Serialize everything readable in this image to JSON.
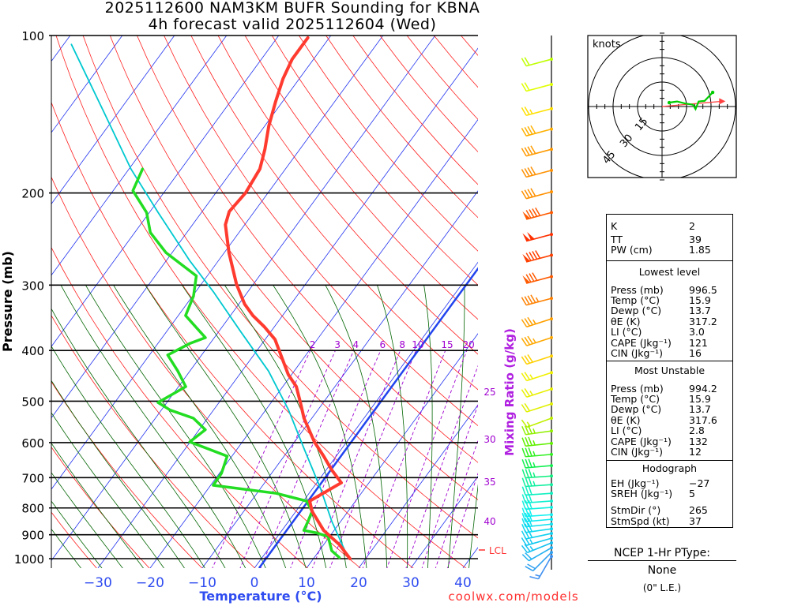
{
  "title": {
    "line1": "2025112600 NAM3KM BUFR Sounding for KBNA",
    "line2": "4h forecast valid 2025112604 (Wed)"
  },
  "credit": "coolwx.com/models",
  "lcl_label": "LCL",
  "colors": {
    "temperature": "#ff3b30",
    "dewpoint": "#22dd22",
    "parcel": "#00c8d0",
    "freezing_isotherm": "#2244ee",
    "isotherms": "#2233ee",
    "dry_adiabats": "#ff2020",
    "moist_adiabats": "#006400",
    "mixing_ratio": "#a000d0",
    "storm_motion": "#ff4040"
  },
  "chart_data": {
    "type": "skew-t",
    "title": "2025112600 NAM3KM BUFR Sounding for KBNA / 4h forecast valid 2025112604 (Wed)",
    "xlabel": "Temperature (°C)",
    "ylabel": "Pressure (mb)",
    "y2label": "Mixing Ratio (g/kg)",
    "xlim": [
      -40,
      43
    ],
    "ylim": [
      1050,
      100
    ],
    "pressure_ticks": [
      "100",
      "200",
      "300",
      "400",
      "500",
      "600",
      "700",
      "800",
      "900",
      "1000"
    ],
    "temperature_ticks": [
      "−30",
      "−20",
      "−10",
      "0",
      "10",
      "20",
      "30",
      "40"
    ],
    "temperature_tick_values": [
      -30,
      -20,
      -10,
      0,
      10,
      20,
      30,
      40
    ],
    "mixing_ratio_labels": [
      "2",
      "3",
      "4",
      "6",
      "8",
      "10",
      "15",
      "20",
      "25",
      "30",
      "35",
      "40"
    ],
    "mixing_ratio_values": [
      2,
      3,
      4,
      6,
      8,
      10,
      15,
      20,
      25,
      30,
      35,
      40
    ],
    "lcl_pressure": 965,
    "temperature": [
      [
        1000,
        17.0
      ],
      [
        940,
        13.0
      ],
      [
        883,
        8.0
      ],
      [
        812,
        3.1
      ],
      [
        776,
        1.2
      ],
      [
        716,
        4.7
      ],
      [
        676,
        1.0
      ],
      [
        637,
        -2.4
      ],
      [
        598,
        -6.2
      ],
      [
        539,
        -11.5
      ],
      [
        503,
        -14.4
      ],
      [
        469,
        -17.4
      ],
      [
        445,
        -20.6
      ],
      [
        408,
        -24.8
      ],
      [
        381,
        -28.1
      ],
      [
        361,
        -31.8
      ],
      [
        343,
        -35.7
      ],
      [
        326,
        -38.9
      ],
      [
        299,
        -43.2
      ],
      [
        260,
        -49.1
      ],
      [
        230,
        -53.7
      ],
      [
        217,
        -54.8
      ],
      [
        200,
        -54.3
      ],
      [
        180,
        -54.9
      ],
      [
        165,
        -56.7
      ],
      [
        149,
        -59.2
      ],
      [
        134,
        -61.3
      ],
      [
        121,
        -63.1
      ],
      [
        111,
        -64.1
      ],
      [
        101,
        -64.1
      ]
    ],
    "dewpoint": [
      [
        995,
        14.8
      ],
      [
        966,
        12.4
      ],
      [
        907,
        9.7
      ],
      [
        892,
        6.8
      ],
      [
        883,
        4.2
      ],
      [
        847,
        3.7
      ],
      [
        812,
        3.1
      ],
      [
        776,
        0.6
      ],
      [
        750,
        -6.3
      ],
      [
        724,
        -19.5
      ],
      [
        687,
        -19.6
      ],
      [
        637,
        -20.9
      ],
      [
        598,
        -30.1
      ],
      [
        567,
        -28.8
      ],
      [
        539,
        -32.7
      ],
      [
        520,
        -38.3
      ],
      [
        503,
        -41.7
      ],
      [
        469,
        -38.6
      ],
      [
        438,
        -42.3
      ],
      [
        408,
        -46.5
      ],
      [
        388,
        -43.9
      ],
      [
        378,
        -41.7
      ],
      [
        343,
        -48.6
      ],
      [
        315,
        -49.8
      ],
      [
        288,
        -52.1
      ],
      [
        260,
        -61.2
      ],
      [
        238,
        -67.0
      ],
      [
        218,
        -70.5
      ],
      [
        198,
        -76.2
      ],
      [
        180,
        -77.4
      ]
    ],
    "parcel": [
      [
        990,
        16.2
      ],
      [
        847,
        8.2
      ],
      [
        734,
        1.5
      ],
      [
        619,
        -7.0
      ],
      [
        520,
        -15.6
      ],
      [
        438,
        -24.9
      ],
      [
        368,
        -35.8
      ],
      [
        309,
        -46.6
      ],
      [
        269,
        -55.6
      ],
      [
        218,
        -68.3
      ],
      [
        180,
        -79.6
      ],
      [
        139,
        -93.2
      ],
      [
        104,
        -108.5
      ]
    ],
    "winds": [
      [
        111,
        255,
        20,
        "#bfff00"
      ],
      [
        124,
        255,
        20,
        "#e0ff00"
      ],
      [
        138,
        255,
        25,
        "#ffe000"
      ],
      [
        151,
        255,
        40,
        "#ffb000"
      ],
      [
        165,
        255,
        40,
        "#ff9a00"
      ],
      [
        181,
        255,
        40,
        "#ff9000"
      ],
      [
        199,
        255,
        40,
        "#ff9000"
      ],
      [
        218,
        255,
        90,
        "#ff5a00"
      ],
      [
        240,
        255,
        100,
        "#ff3000"
      ],
      [
        263,
        255,
        90,
        "#ff4000"
      ],
      [
        289,
        255,
        80,
        "#ff5a00"
      ],
      [
        318,
        255,
        45,
        "#ff8000"
      ],
      [
        348,
        252,
        35,
        "#ffa000"
      ],
      [
        378,
        252,
        35,
        "#ffa800"
      ],
      [
        410,
        252,
        30,
        "#ffd000"
      ],
      [
        441,
        252,
        25,
        "#f0f000"
      ],
      [
        474,
        252,
        25,
        "#e8f000"
      ],
      [
        506,
        252,
        20,
        "#e0f000"
      ],
      [
        539,
        250,
        15,
        "#c0f000"
      ],
      [
        570,
        262,
        35,
        "#90f000"
      ],
      [
        602,
        264,
        35,
        "#60f000"
      ],
      [
        632,
        265,
        35,
        "#30f020"
      ],
      [
        664,
        265,
        35,
        "#10f050"
      ],
      [
        695,
        266,
        35,
        "#10f080"
      ],
      [
        722,
        266,
        35,
        "#10f0a0"
      ],
      [
        750,
        266,
        30,
        "#10f0c0"
      ],
      [
        776,
        266,
        30,
        "#10f0d0"
      ],
      [
        798,
        266,
        30,
        "#10f0e0"
      ],
      [
        824,
        266,
        30,
        "#10f0f0"
      ],
      [
        841,
        265,
        30,
        "#10e8f0"
      ],
      [
        859,
        264,
        30,
        "#10e0f0"
      ],
      [
        877,
        262,
        30,
        "#10d8f0"
      ],
      [
        895,
        258,
        30,
        "#10d0f0"
      ],
      [
        914,
        254,
        25,
        "#10c8f0"
      ],
      [
        933,
        248,
        25,
        "#10c0f0"
      ],
      [
        953,
        240,
        20,
        "#20b0f0"
      ],
      [
        973,
        225,
        20,
        "#30a0f0"
      ],
      [
        990,
        210,
        15,
        "#4090f0"
      ]
    ]
  },
  "hodograph": {
    "units_label": "knots",
    "ring_labels": [
      "15",
      "30",
      "45"
    ],
    "ring_values": [
      15,
      30,
      45
    ],
    "points_uv": [
      [
        4.4,
        2.4
      ],
      [
        9.2,
        3.1
      ],
      [
        14.0,
        1.9
      ],
      [
        18.9,
        1.1
      ],
      [
        20.5,
        -1.6
      ],
      [
        22.4,
        3.1
      ],
      [
        26.1,
        3.5
      ],
      [
        28.5,
        6.0
      ],
      [
        31.0,
        8.7
      ]
    ],
    "storm_motion_uv": [
      36.9,
      3.2
    ]
  },
  "indices": {
    "k": {
      "label": "K",
      "value": "2"
    },
    "tt": {
      "label": "TT",
      "value": "39"
    },
    "pw": {
      "label": "PW (cm)",
      "value": "1.85"
    }
  },
  "lowest_level": {
    "header": "Lowest level",
    "rows": [
      {
        "label": "Press (mb)",
        "value": "996.5"
      },
      {
        "label": "Temp (°C)",
        "value": "15.9"
      },
      {
        "label": "Dewp (°C)",
        "value": "13.7"
      },
      {
        "label": "θE (K)",
        "value": "317.2"
      },
      {
        "label": "LI (°C)",
        "value": "3.0"
      },
      {
        "label": "CAPE (Jkg⁻¹)",
        "value": "121"
      },
      {
        "label": "CIN (Jkg⁻¹)",
        "value": "16"
      }
    ]
  },
  "most_unstable": {
    "header": "Most Unstable",
    "rows": [
      {
        "label": "Press (mb)",
        "value": "994.2"
      },
      {
        "label": "Temp (°C)",
        "value": "15.9"
      },
      {
        "label": "Dewp (°C)",
        "value": "13.7"
      },
      {
        "label": "θE (K)",
        "value": "317.6"
      },
      {
        "label": "LI (°C)",
        "value": "2.8"
      },
      {
        "label": "CAPE (Jkg⁻¹)",
        "value": "132"
      },
      {
        "label": "CIN (Jkg⁻¹)",
        "value": "12"
      }
    ]
  },
  "hodograph_stats": {
    "header": "Hodograph",
    "rows": [
      {
        "label": "EH (Jkg⁻¹)",
        "value": "−27"
      },
      {
        "label": "SREH (Jkg⁻¹)",
        "value": "5"
      },
      {
        "label": "StmDir (°)",
        "value": "265"
      },
      {
        "label": "StmSpd (kt)",
        "value": "37"
      }
    ]
  },
  "ptype": {
    "header": "NCEP 1-Hr PType:",
    "value": "None",
    "note": "(0\" L.E.)"
  }
}
